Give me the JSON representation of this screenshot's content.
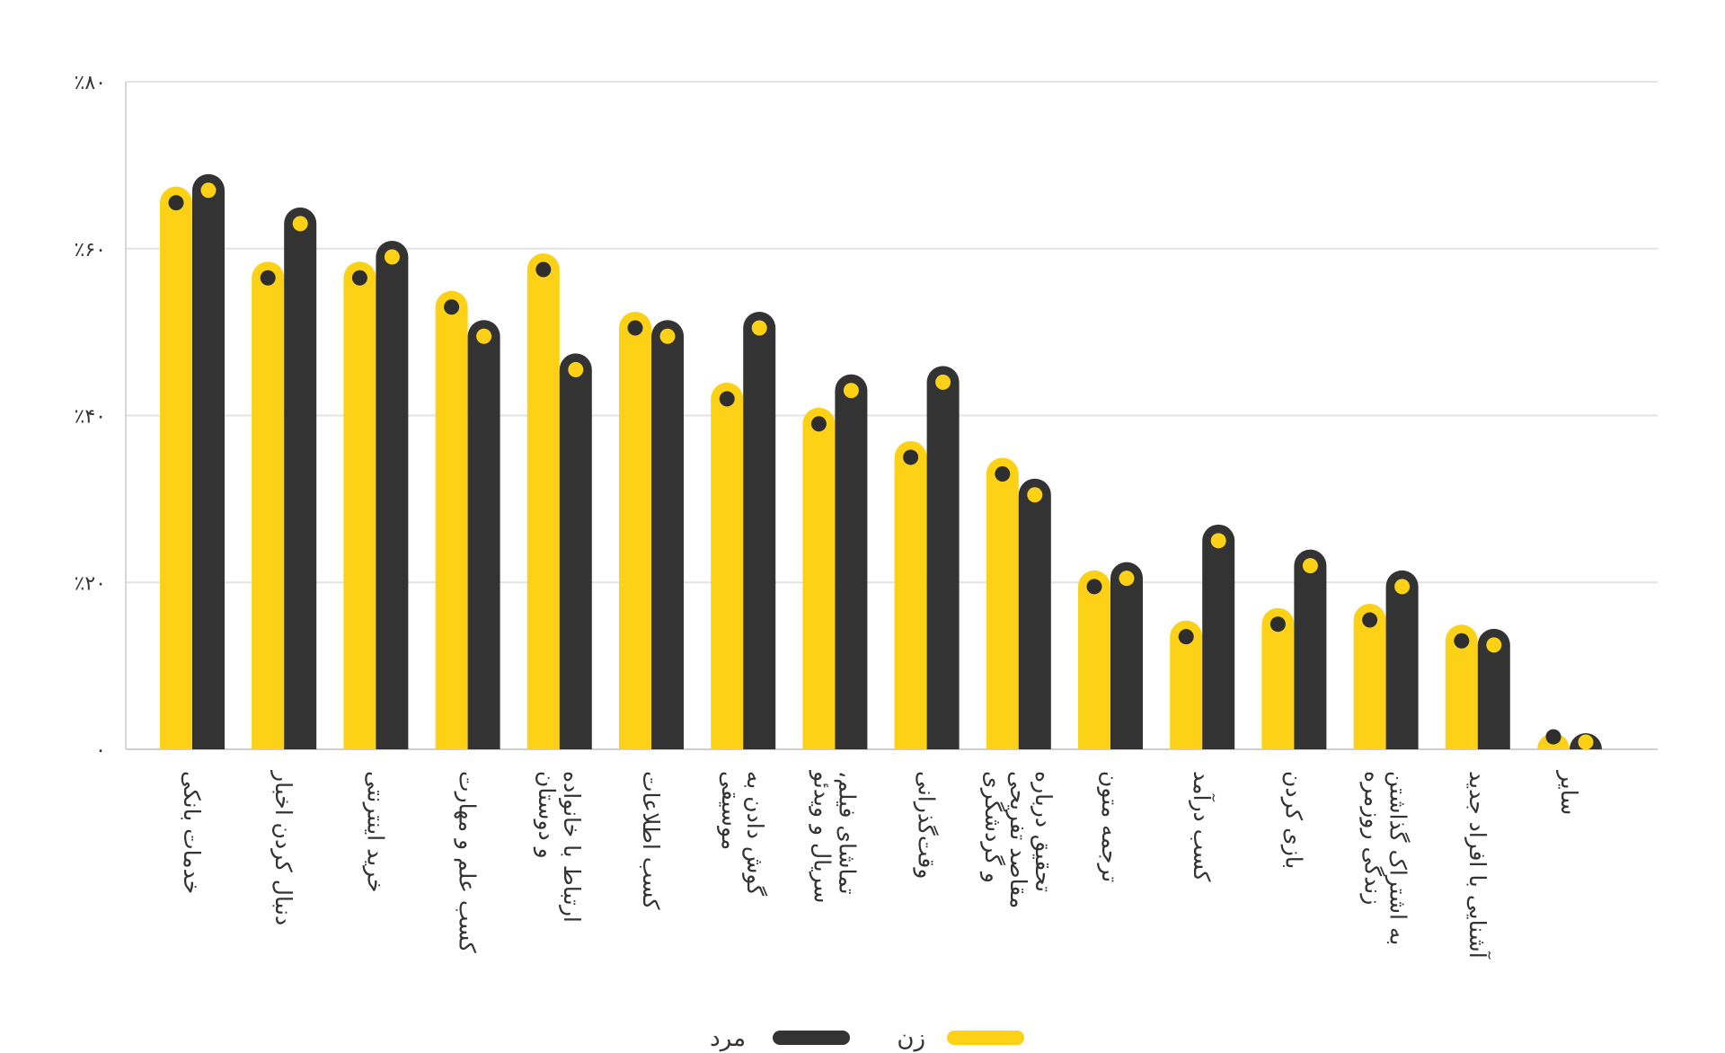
{
  "chart_data": {
    "type": "bar",
    "title": "",
    "xlabel": "",
    "ylabel": "",
    "ylim": [
      0,
      80
    ],
    "y_ticks": [
      {
        "value": 0,
        "label": "۰"
      },
      {
        "value": 20,
        "label": "٪۲۰"
      },
      {
        "value": 40,
        "label": "٪۴۰"
      },
      {
        "value": 60,
        "label": "٪۶۰"
      },
      {
        "value": 80,
        "label": "٪۸۰"
      }
    ],
    "grid": true,
    "legend_position": "bottom-center",
    "categories": [
      [
        "خدمات بانکی"
      ],
      [
        "دنبال کردن اخبار"
      ],
      [
        "خرید اینترنتی"
      ],
      [
        "کسب علم و مهارت"
      ],
      [
        "ارتباط با خانواده",
        "و دوستان"
      ],
      [
        "کسب اطلاعات"
      ],
      [
        "گوش دادن به",
        "موسیقی"
      ],
      [
        "تماشای فیلم،",
        "سریال و ویدئو"
      ],
      [
        "وقت‌گذرانی"
      ],
      [
        "تحقیق درباره",
        "مقاصد تفریحی",
        "و گردشگری"
      ],
      [
        "ترجمه متون"
      ],
      [
        "کسب درآمد"
      ],
      [
        "بازی کردن"
      ],
      [
        "به اشتراک گذاشتن",
        "زندگی روزمره"
      ],
      [
        "آشنایی با افراد جدید"
      ],
      [
        "سایر"
      ]
    ],
    "series": [
      {
        "name": "زن",
        "color": "#FCD116",
        "dot_color": "#2E2E2E",
        "values": [
          65.5,
          56.5,
          56.5,
          53,
          57.5,
          50.5,
          42,
          39,
          35,
          33,
          19.5,
          13.5,
          15,
          15.5,
          13,
          1.5
        ]
      },
      {
        "name": "مرد",
        "color": "#333333",
        "dot_color": "#FCD116",
        "values": [
          67,
          63,
          59,
          49.5,
          45.5,
          49.5,
          50.5,
          43,
          44,
          30.5,
          20.5,
          25,
          22,
          19.5,
          12.5,
          0.3
        ]
      }
    ]
  }
}
